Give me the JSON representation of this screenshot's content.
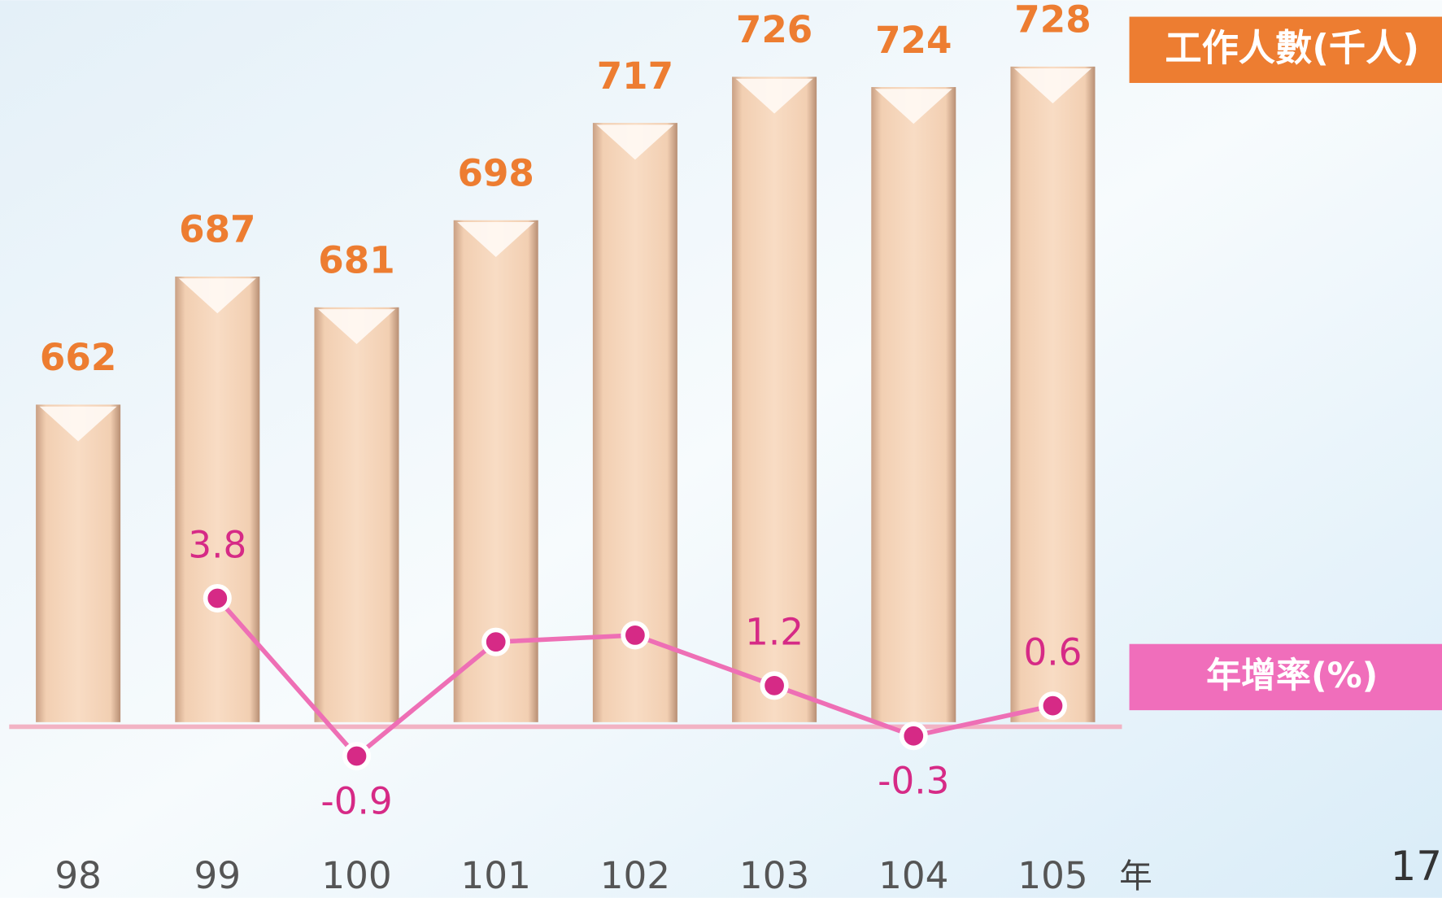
{
  "chart_data": {
    "type": "bar_line",
    "x_label": "年",
    "page_number": "17",
    "categories": [
      "98",
      "99",
      "100",
      "101",
      "102",
      "103",
      "104",
      "105"
    ],
    "ylim": [
      600,
      740
    ],
    "y2lim": [
      -2,
      5
    ],
    "series": [
      {
        "name": "工作人數(千人)",
        "type": "bar",
        "color": "#ed7d31",
        "bar_color": "#f0c9a8",
        "values": [
          662,
          687,
          681,
          698,
          717,
          726,
          724,
          728
        ]
      },
      {
        "name": "年增率(%)",
        "type": "line",
        "axis": "y2",
        "color": "#ee6fb5",
        "marker_color": "#d62a86",
        "values": [
          null,
          3.8,
          -0.9,
          2.5,
          2.7,
          1.2,
          -0.3,
          0.6
        ],
        "value_labels": [
          null,
          "3.8",
          "-0.9",
          null,
          null,
          "1.2",
          "-0.3",
          "0.6"
        ]
      }
    ]
  }
}
